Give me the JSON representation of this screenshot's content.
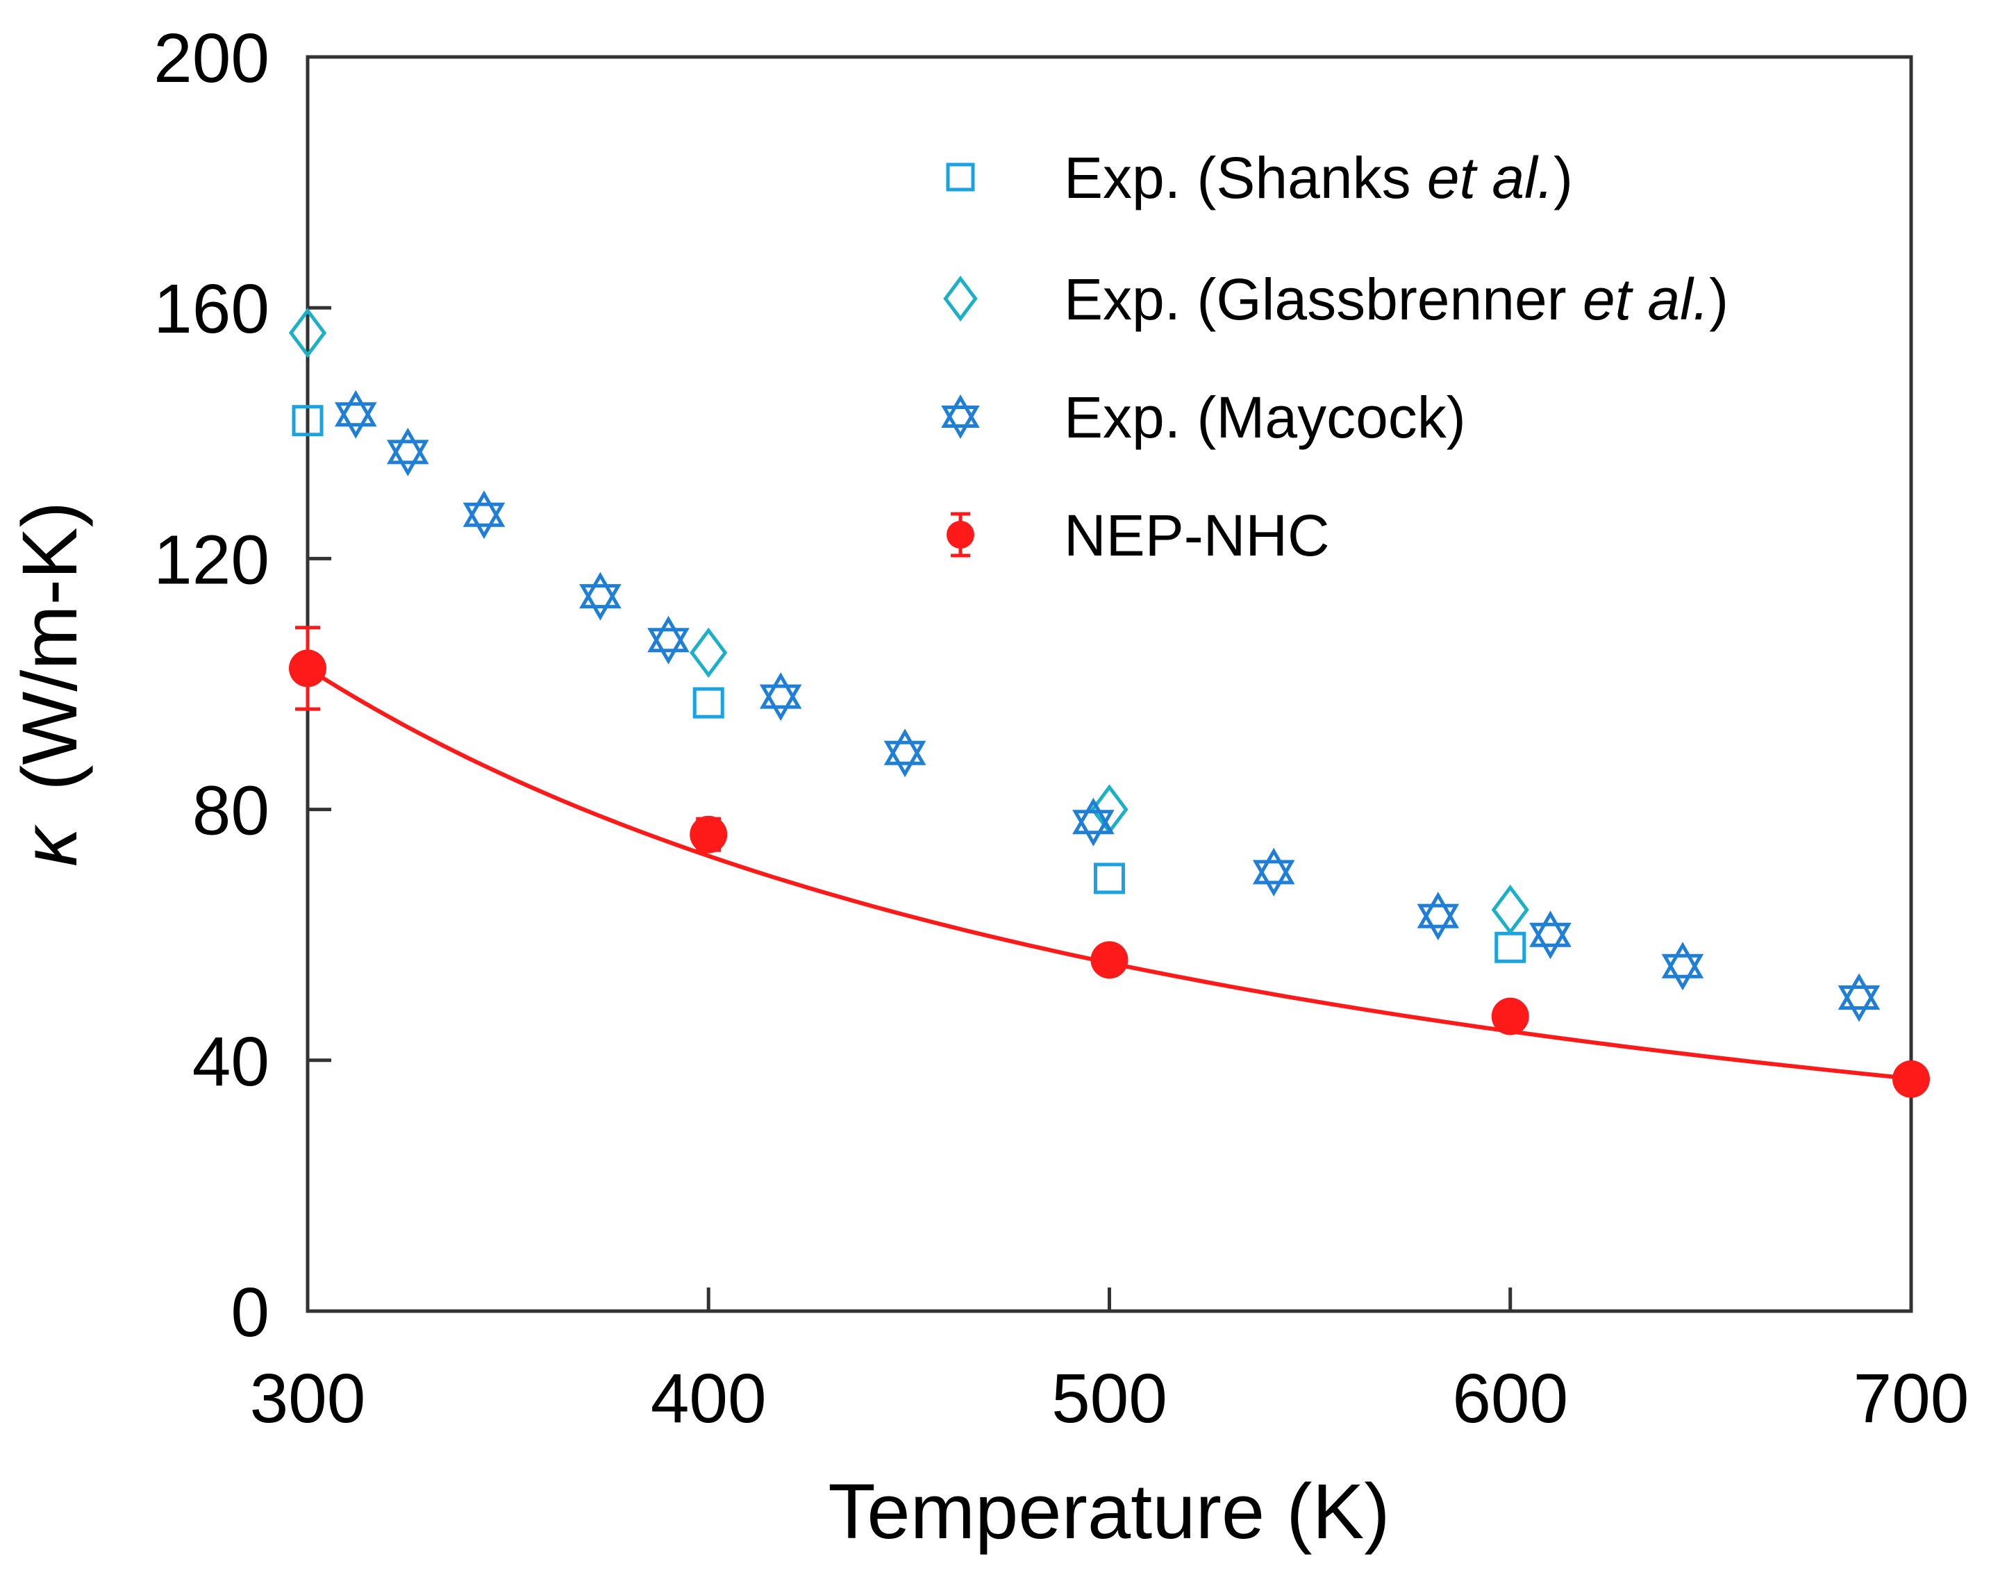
{
  "chart_data": {
    "type": "scatter",
    "xlabel": "Temperature (K)",
    "ylabel_symbol": "κ",
    "ylabel_unit": "(W/m-K)",
    "xlim": [
      300,
      700
    ],
    "ylim": [
      0,
      200
    ],
    "xticks": [
      300,
      400,
      500,
      600,
      700
    ],
    "yticks": [
      0,
      40,
      80,
      120,
      160,
      200
    ],
    "grid": false,
    "legend_position": "top-right",
    "colors": {
      "shanks": "#1aa3e0",
      "glassbrenner": "#1ab0c8",
      "maycock": "#1f7fd6",
      "nep": "#ff1a1a",
      "axis": "#333333"
    },
    "series": [
      {
        "key": "shanks",
        "name_prefix": "Exp. (Shanks ",
        "name_italic": "et al.",
        "name_suffix": ")",
        "marker": "square",
        "x": [
          300,
          400,
          500,
          600
        ],
        "y": [
          142,
          97,
          69,
          58
        ]
      },
      {
        "key": "glassbrenner",
        "name_prefix": "Exp. (Glassbrenner ",
        "name_italic": "et al.",
        "name_suffix": ")",
        "marker": "diamond",
        "x": [
          300,
          400,
          500,
          600
        ],
        "y": [
          156,
          105,
          80,
          64
        ]
      },
      {
        "key": "maycock",
        "name_prefix": "Exp. (Maycock)",
        "name_italic": "",
        "name_suffix": "",
        "marker": "star",
        "x": [
          312,
          325,
          344,
          373,
          390,
          418,
          449,
          496,
          541,
          582,
          610,
          643,
          687
        ],
        "y": [
          143,
          137,
          127,
          114,
          107,
          98,
          89,
          78,
          70,
          63,
          60,
          55,
          50
        ]
      },
      {
        "key": "nep",
        "name_prefix": "NEP-NHC",
        "name_italic": "",
        "name_suffix": "",
        "marker": "circle-errorbar",
        "x": [
          300,
          400,
          500,
          600,
          700
        ],
        "y": [
          102.5,
          76,
          56,
          47,
          37
        ],
        "yerr": [
          6.5,
          2.5,
          0,
          0,
          0
        ],
        "fit_curve": {
          "form": "a / T^b",
          "a": 102.5,
          "b": 1.2,
          "t0": 300
        }
      }
    ]
  }
}
